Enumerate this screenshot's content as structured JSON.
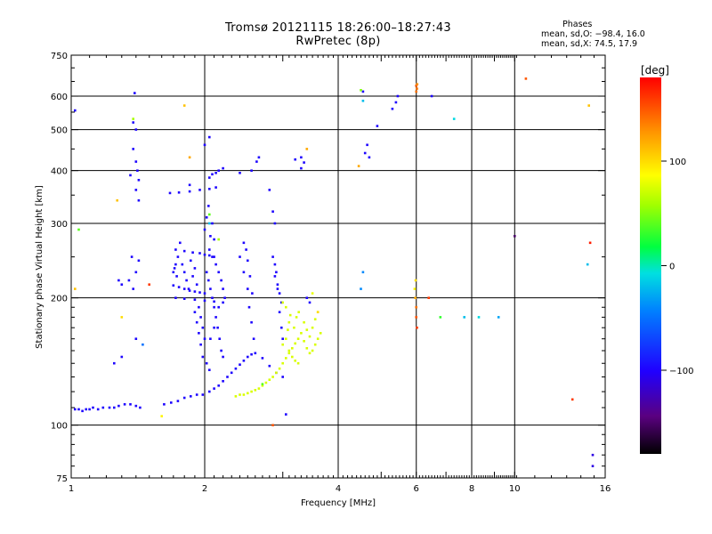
{
  "header": {
    "title_line1": "Tromsø 20121115 18:26:00–18:27:43",
    "title_line2": "RwPretec (8p)",
    "stats_title": "Phases",
    "stats_line1": "mean, sd,O: −98.4, 16.0",
    "stats_line2": "mean, sd,X:  74.5, 17.9"
  },
  "chart_data": {
    "type": "scatter",
    "xlabel": "Frequency [MHz]",
    "ylabel": "Stationary phase Virtual Height [km]",
    "xscale": "log",
    "yscale": "log",
    "xlim": [
      1,
      16
    ],
    "ylim": [
      75,
      750
    ],
    "x_ticks": [
      {
        "value": 1,
        "label": "1"
      },
      {
        "value": 2,
        "label": "2"
      },
      {
        "value": 4,
        "label": "4"
      },
      {
        "value": 6,
        "label": "6"
      },
      {
        "value": 8,
        "label": "8"
      },
      {
        "value": 10,
        "label": "10"
      },
      {
        "value": 16,
        "label": "16"
      }
    ],
    "x_grid": [
      2,
      4,
      6,
      8,
      10
    ],
    "y_ticks": [
      {
        "value": 75,
        "label": "75"
      },
      {
        "value": 100,
        "label": "100"
      },
      {
        "value": 200,
        "label": "200"
      },
      {
        "value": 300,
        "label": "300"
      },
      {
        "value": 400,
        "label": "400"
      },
      {
        "value": 500,
        "label": "500"
      },
      {
        "value": 600,
        "label": "600"
      },
      {
        "value": 750,
        "label": "750"
      }
    ],
    "y_grid": [
      100,
      200,
      300,
      400,
      500,
      600
    ],
    "grid": true,
    "colorbar": {
      "label": "[deg]",
      "range": [
        -180,
        180
      ],
      "ticks": [
        {
          "value": 100,
          "label": "100"
        },
        {
          "value": 0,
          "label": "0"
        },
        {
          "value": -100,
          "label": "−100"
        }
      ]
    },
    "series": [
      {
        "mode": "O",
        "phase_deg": -98,
        "points": [
          [
            1.02,
            109
          ],
          [
            1.04,
            109
          ],
          [
            1.06,
            108
          ],
          [
            1.08,
            109
          ],
          [
            1.1,
            109
          ],
          [
            1.12,
            110
          ],
          [
            1.15,
            109
          ],
          [
            1.18,
            110
          ],
          [
            1.22,
            110
          ],
          [
            1.25,
            110
          ],
          [
            1.28,
            111
          ],
          [
            1.32,
            112
          ],
          [
            1.36,
            112
          ],
          [
            1.4,
            111
          ],
          [
            1.43,
            110
          ],
          [
            1.62,
            112
          ],
          [
            1.68,
            113
          ],
          [
            1.74,
            114
          ],
          [
            1.8,
            116
          ],
          [
            1.86,
            117
          ],
          [
            1.92,
            118
          ],
          [
            1.98,
            118
          ],
          [
            2.05,
            120
          ],
          [
            2.1,
            122
          ],
          [
            2.15,
            124
          ],
          [
            2.2,
            127
          ],
          [
            2.25,
            130
          ],
          [
            2.3,
            133
          ],
          [
            2.35,
            136
          ],
          [
            2.4,
            139
          ],
          [
            2.45,
            142
          ],
          [
            2.5,
            145
          ],
          [
            2.55,
            147
          ],
          [
            2.6,
            148
          ],
          [
            2.7,
            144
          ],
          [
            2.8,
            138
          ],
          [
            2.9,
            133
          ],
          [
            3.0,
            130
          ],
          [
            1.72,
            260
          ],
          [
            1.8,
            258
          ],
          [
            1.88,
            256
          ],
          [
            1.95,
            255
          ],
          [
            2.0,
            253
          ],
          [
            2.05,
            252
          ],
          [
            2.1,
            250
          ],
          [
            1.7,
            214
          ],
          [
            1.75,
            212
          ],
          [
            1.8,
            210
          ],
          [
            1.85,
            208
          ],
          [
            1.9,
            207
          ],
          [
            1.95,
            206
          ],
          [
            2.0,
            205
          ],
          [
            1.72,
            200
          ],
          [
            1.8,
            199
          ],
          [
            1.9,
            198
          ],
          [
            2.0,
            197
          ],
          [
            2.1,
            196
          ],
          [
            2.2,
            195
          ],
          [
            1.7,
            230
          ],
          [
            1.72,
            240
          ],
          [
            1.74,
            250
          ],
          [
            1.76,
            270
          ],
          [
            1.73,
            225
          ],
          [
            1.71,
            235
          ],
          [
            1.78,
            240
          ],
          [
            1.8,
            230
          ],
          [
            1.82,
            220
          ],
          [
            1.84,
            210
          ],
          [
            1.86,
            245
          ],
          [
            1.88,
            225
          ],
          [
            1.9,
            235
          ],
          [
            1.92,
            215
          ],
          [
            1.94,
            190
          ],
          [
            1.96,
            180
          ],
          [
            1.98,
            170
          ],
          [
            2.0,
            160
          ],
          [
            1.9,
            185
          ],
          [
            1.92,
            175
          ],
          [
            1.94,
            165
          ],
          [
            1.96,
            155
          ],
          [
            1.98,
            145
          ],
          [
            2.02,
            140
          ],
          [
            2.05,
            135
          ],
          [
            2.02,
            230
          ],
          [
            2.04,
            220
          ],
          [
            2.06,
            210
          ],
          [
            2.08,
            200
          ],
          [
            2.1,
            190
          ],
          [
            2.12,
            180
          ],
          [
            2.14,
            170
          ],
          [
            2.16,
            160
          ],
          [
            2.18,
            150
          ],
          [
            2.2,
            145
          ],
          [
            2.05,
            260
          ],
          [
            2.08,
            250
          ],
          [
            2.1,
            275
          ],
          [
            2.12,
            240
          ],
          [
            2.15,
            230
          ],
          [
            2.18,
            220
          ],
          [
            2.2,
            210
          ],
          [
            2.22,
            200
          ],
          [
            2.15,
            190
          ],
          [
            2.1,
            170
          ],
          [
            2.06,
            160
          ],
          [
            2.0,
            290
          ],
          [
            2.02,
            310
          ],
          [
            2.04,
            330
          ],
          [
            2.06,
            280
          ],
          [
            2.08,
            300
          ],
          [
            1.67,
            354
          ],
          [
            1.75,
            355
          ],
          [
            1.85,
            357
          ],
          [
            1.95,
            360
          ],
          [
            2.05,
            362
          ],
          [
            2.12,
            365
          ],
          [
            2.05,
            385
          ],
          [
            2.08,
            392
          ],
          [
            2.12,
            395
          ],
          [
            2.15,
            400
          ],
          [
            2.2,
            405
          ],
          [
            2.4,
            395
          ],
          [
            2.55,
            400
          ],
          [
            2.62,
            420
          ],
          [
            2.65,
            430
          ],
          [
            2.0,
            460
          ],
          [
            2.05,
            480
          ],
          [
            1.85,
            370
          ],
          [
            2.4,
            250
          ],
          [
            2.45,
            230
          ],
          [
            2.5,
            210
          ],
          [
            2.52,
            190
          ],
          [
            2.55,
            175
          ],
          [
            2.58,
            160
          ],
          [
            2.45,
            270
          ],
          [
            2.48,
            260
          ],
          [
            2.5,
            245
          ],
          [
            2.53,
            225
          ],
          [
            2.56,
            205
          ],
          [
            2.85,
            250
          ],
          [
            2.88,
            240
          ],
          [
            2.9,
            230
          ],
          [
            2.92,
            215
          ],
          [
            2.95,
            205
          ],
          [
            2.98,
            195
          ],
          [
            2.88,
            225
          ],
          [
            2.92,
            210
          ],
          [
            2.95,
            185
          ],
          [
            2.98,
            170
          ],
          [
            3.0,
            160
          ],
          [
            2.8,
            360
          ],
          [
            2.85,
            320
          ],
          [
            2.88,
            300
          ],
          [
            1.38,
            450
          ],
          [
            1.4,
            420
          ],
          [
            1.41,
            400
          ],
          [
            1.42,
            380
          ],
          [
            1.38,
            520
          ],
          [
            1.4,
            500
          ],
          [
            1.39,
            610
          ],
          [
            1.36,
            390
          ],
          [
            1.4,
            360
          ],
          [
            1.42,
            340
          ],
          [
            1.35,
            220
          ],
          [
            1.38,
            210
          ],
          [
            1.4,
            230
          ],
          [
            1.42,
            245
          ],
          [
            1.37,
            250
          ],
          [
            1.28,
            220
          ],
          [
            1.3,
            215
          ],
          [
            1.25,
            140
          ],
          [
            1.3,
            145
          ],
          [
            1.4,
            160
          ],
          [
            3.05,
            106
          ],
          [
            3.2,
            425
          ],
          [
            3.3,
            430
          ],
          [
            3.35,
            418
          ],
          [
            3.3,
            405
          ],
          [
            4.6,
            440
          ],
          [
            4.65,
            460
          ],
          [
            4.7,
            430
          ],
          [
            4.55,
            615
          ],
          [
            4.9,
            510
          ],
          [
            5.3,
            560
          ],
          [
            5.4,
            580
          ],
          [
            5.45,
            600
          ],
          [
            6.5,
            600
          ],
          [
            1.02,
            555
          ],
          [
            3.4,
            200
          ],
          [
            3.45,
            195
          ]
        ]
      },
      {
        "mode": "X",
        "phase_deg": 75,
        "points": [
          [
            2.35,
            117
          ],
          [
            2.4,
            118
          ],
          [
            2.45,
            118
          ],
          [
            2.5,
            119
          ],
          [
            2.55,
            120
          ],
          [
            2.6,
            121
          ],
          [
            2.65,
            122
          ],
          [
            2.7,
            124
          ],
          [
            2.75,
            126
          ],
          [
            2.8,
            128
          ],
          [
            2.85,
            130
          ],
          [
            2.9,
            133
          ],
          [
            2.95,
            136
          ],
          [
            3.0,
            140
          ],
          [
            3.05,
            144
          ],
          [
            3.1,
            148
          ],
          [
            3.15,
            152
          ],
          [
            3.2,
            156
          ],
          [
            3.25,
            160
          ],
          [
            3.3,
            165
          ],
          [
            3.35,
            158
          ],
          [
            3.4,
            152
          ],
          [
            3.45,
            148
          ],
          [
            3.5,
            150
          ],
          [
            3.55,
            155
          ],
          [
            3.6,
            160
          ],
          [
            3.65,
            165
          ],
          [
            3.0,
            155
          ],
          [
            3.05,
            160
          ],
          [
            3.08,
            168
          ],
          [
            3.1,
            175
          ],
          [
            3.12,
            182
          ],
          [
            3.05,
            190
          ],
          [
            3.0,
            195
          ],
          [
            3.1,
            150
          ],
          [
            3.15,
            145
          ],
          [
            3.2,
            142
          ],
          [
            3.25,
            140
          ],
          [
            3.18,
            170
          ],
          [
            3.22,
            180
          ],
          [
            3.26,
            185
          ],
          [
            3.35,
            175
          ],
          [
            3.4,
            168
          ],
          [
            3.45,
            162
          ],
          [
            3.5,
            170
          ],
          [
            3.55,
            178
          ],
          [
            3.6,
            185
          ]
        ]
      },
      {
        "mode": "other",
        "points": [
          [
            5.95,
            210,
            90
          ],
          [
            5.97,
            200,
            120
          ],
          [
            6.0,
            190,
            140
          ],
          [
            6.0,
            180,
            150
          ],
          [
            6.02,
            170,
            160
          ],
          [
            5.98,
            220,
            100
          ],
          [
            6.0,
            615,
            140
          ],
          [
            6.02,
            625,
            140
          ],
          [
            6.0,
            635,
            150
          ],
          [
            6.03,
            640,
            130
          ],
          [
            6.4,
            200,
            160
          ],
          [
            6.8,
            180,
            30
          ],
          [
            7.7,
            180,
            -20
          ],
          [
            8.3,
            180,
            -10
          ],
          [
            9.2,
            180,
            -30
          ],
          [
            10.0,
            280,
            -150
          ],
          [
            10.6,
            660,
            150
          ],
          [
            13.5,
            115,
            160
          ],
          [
            14.6,
            240,
            -20
          ],
          [
            14.8,
            270,
            170
          ],
          [
            14.7,
            570,
            110
          ],
          [
            15.0,
            85,
            -110
          ],
          [
            15.0,
            80,
            -110
          ],
          [
            4.55,
            230,
            -40
          ],
          [
            4.5,
            210,
            -40
          ],
          [
            4.55,
            585,
            -20
          ],
          [
            4.5,
            620,
            50
          ],
          [
            4.45,
            410,
            120
          ],
          [
            7.3,
            530,
            -10
          ],
          [
            1.04,
            290,
            40
          ],
          [
            1.38,
            530,
            60
          ],
          [
            1.8,
            570,
            110
          ],
          [
            1.85,
            430,
            120
          ],
          [
            1.27,
            340,
            110
          ],
          [
            1.5,
            215,
            160
          ],
          [
            1.45,
            155,
            -50
          ],
          [
            1.6,
            105,
            90
          ],
          [
            2.05,
            315,
            40
          ],
          [
            2.05,
            300,
            -20
          ],
          [
            2.7,
            125,
            40
          ],
          [
            2.85,
            100,
            150
          ],
          [
            3.4,
            450,
            120
          ],
          [
            3.5,
            205,
            80
          ],
          [
            3.6,
            185,
            100
          ],
          [
            1.3,
            180,
            100
          ],
          [
            2.15,
            275,
            60
          ],
          [
            1.02,
            210,
            110
          ]
        ]
      }
    ]
  }
}
